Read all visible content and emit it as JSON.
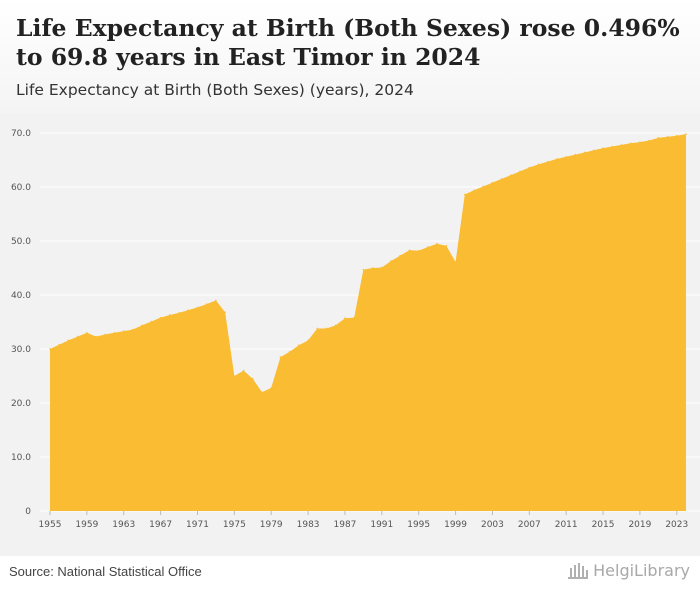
{
  "header": {
    "title": "Life Expectancy at Birth (Both Sexes) rose 0.496% to 69.8 years in East Timor in 2024",
    "subtitle": "Life Expectancy at Birth (Both Sexes) (years), 2024"
  },
  "footer": {
    "source": "Source: National Statistical Office",
    "brand": "HelgiLibrary"
  },
  "colors": {
    "area": "#F9BC33",
    "background": "#F2F2F2",
    "grid": "#FFFFFF"
  },
  "chart_data": {
    "type": "area",
    "title": "Life Expectancy at Birth (Both Sexes) rose 0.496% to 69.8 years in East Timor in 2024",
    "subtitle": "Life Expectancy at Birth (Both Sexes) (years), 2024",
    "xlabel": "",
    "ylabel": "",
    "ylim": [
      0,
      70
    ],
    "yticks": [
      0,
      10,
      20,
      30,
      40,
      50,
      60,
      70
    ],
    "ytick_labels": [
      "0",
      "10.0",
      "20.0",
      "30.0",
      "40.0",
      "50.0",
      "60.0",
      "70.0"
    ],
    "xticks": [
      1955,
      1959,
      1963,
      1967,
      1971,
      1975,
      1979,
      1983,
      1987,
      1991,
      1995,
      1999,
      2003,
      2007,
      2011,
      2015,
      2019,
      2023
    ],
    "grid": true,
    "legend": "none",
    "x": [
      1955,
      1956,
      1957,
      1958,
      1959,
      1960,
      1961,
      1962,
      1963,
      1964,
      1965,
      1966,
      1967,
      1968,
      1969,
      1970,
      1971,
      1972,
      1973,
      1974,
      1975,
      1976,
      1977,
      1978,
      1979,
      1980,
      1981,
      1982,
      1983,
      1984,
      1985,
      1986,
      1987,
      1988,
      1989,
      1990,
      1991,
      1992,
      1993,
      1994,
      1995,
      1996,
      1997,
      1998,
      1999,
      2000,
      2001,
      2002,
      2003,
      2004,
      2005,
      2006,
      2007,
      2008,
      2009,
      2010,
      2011,
      2012,
      2013,
      2014,
      2015,
      2016,
      2017,
      2018,
      2019,
      2020,
      2021,
      2022,
      2023,
      2024
    ],
    "y": [
      30.0,
      30.8,
      31.6,
      32.3,
      33.0,
      32.3,
      32.7,
      33.0,
      33.3,
      33.6,
      34.4,
      35.1,
      35.8,
      36.3,
      36.7,
      37.2,
      37.7,
      38.3,
      39.0,
      36.8,
      25.0,
      26.0,
      24.5,
      22.0,
      22.8,
      28.5,
      29.5,
      30.7,
      31.6,
      33.8,
      33.8,
      34.4,
      35.7,
      35.8,
      44.7,
      45.0,
      45.1,
      46.3,
      47.3,
      48.3,
      48.2,
      48.9,
      49.5,
      49.1,
      46.1,
      58.6,
      59.4,
      60.1,
      60.8,
      61.5,
      62.2,
      62.9,
      63.6,
      64.2,
      64.7,
      65.2,
      65.6,
      66.0,
      66.4,
      66.8,
      67.2,
      67.5,
      67.8,
      68.1,
      68.3,
      68.6,
      69.1,
      69.3,
      69.5,
      69.8
    ]
  }
}
